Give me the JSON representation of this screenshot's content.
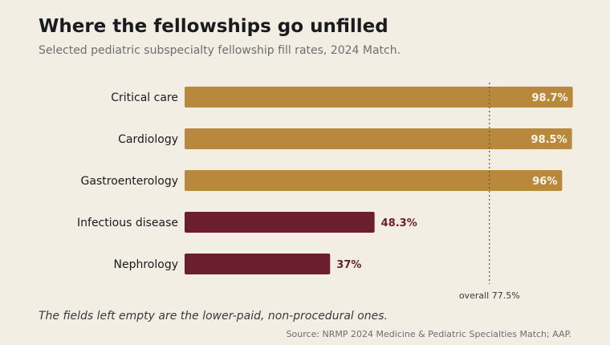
{
  "title": "Where the fellowships go unfilled",
  "subtitle": "Selected pediatric subspecialty fellowship fill rates, 2024 Match.",
  "footnote": "The fields left empty are the lower-paid, non-procedural ones.",
  "source": "Source: NRMP 2024 Medicine & Pediatric Specialties Match; AAP.",
  "colors": {
    "high": "#b8893c",
    "low": "#6b1e2e",
    "high_label": "#fbf6ea",
    "low_label": "#6b1e2e",
    "category_label": "#1a1a1f",
    "reference": "#555555"
  },
  "chart_data": {
    "type": "bar",
    "orientation": "horizontal",
    "title": "Where the fellowships go unfilled",
    "subtitle": "Selected pediatric subspecialty fellowship fill rates, 2024 Match.",
    "categories": [
      "Critical care",
      "Cardiology",
      "Gastroenterology",
      "Infectious disease",
      "Nephrology"
    ],
    "values": [
      98.7,
      98.5,
      96,
      48.3,
      37
    ],
    "value_labels": [
      "98.7%",
      "98.5%",
      "96%",
      "48.3%",
      "37%"
    ],
    "highlight": [
      "high",
      "high",
      "high",
      "low",
      "low"
    ],
    "xlim": [
      0,
      100
    ],
    "reference_line": {
      "value": 77.5,
      "label": "overall 77.5%"
    },
    "grid": false,
    "legend": "none"
  }
}
